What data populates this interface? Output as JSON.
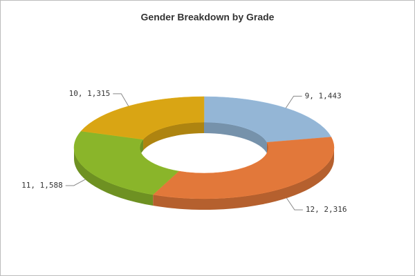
{
  "chart_data": {
    "type": "doughnut3d",
    "title": "Gender Breakdown by Grade",
    "categories": [
      "9",
      "12",
      "11",
      "10"
    ],
    "values": [
      1443,
      2316,
      1588,
      1315
    ],
    "value_labels": [
      "1,443",
      "2,316",
      "1,588",
      "1,315"
    ],
    "label_separator": ", ",
    "colors": [
      "#94b6d6",
      "#e2783a",
      "#8ab52a",
      "#d9a514"
    ]
  }
}
